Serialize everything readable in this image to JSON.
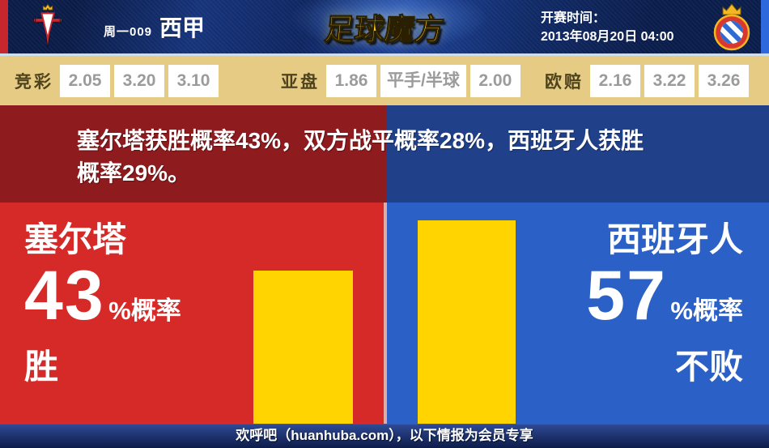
{
  "header": {
    "match_code": "周一009",
    "league": "西甲",
    "brand": "足球魔方",
    "kickoff_label": "开赛时间：",
    "kickoff_datetime": "2013年08月20日 04:00"
  },
  "odds": {
    "jingcai": {
      "label": "竞彩",
      "values": [
        "2.05",
        "3.20",
        "3.10"
      ]
    },
    "yapan": {
      "label": "亚盘",
      "values": [
        "1.86",
        "平手/半球",
        "2.00"
      ]
    },
    "oupei": {
      "label": "欧赔",
      "values": [
        "2.16",
        "3.22",
        "3.26"
      ]
    }
  },
  "analysis": {
    "line1": "塞尔塔获胜概率43%，双方战平概率28%，西班牙人获胜",
    "line2": "概率29%。"
  },
  "home_panel": {
    "team": "塞尔塔",
    "percent": "43",
    "suffix": "%概率",
    "outcome": "胜"
  },
  "away_panel": {
    "team": "西班牙人",
    "percent": "57",
    "suffix": "%概率",
    "outcome": "不败"
  },
  "footer": {
    "text": "欢呼吧（huanhuba.com），以下情报为会员专享"
  },
  "colors": {
    "home_bright": "#d62a28",
    "home_dark": "#8e1b1e",
    "away_bright": "#2b60c6",
    "away_dark": "#20418a",
    "bar": "#ffd400",
    "odds_bg": "#e5cb84"
  },
  "chart_data": {
    "type": "bar",
    "categories": [
      "塞尔塔 胜",
      "西班牙人 不败"
    ],
    "values": [
      43,
      57
    ],
    "unit": "%",
    "bar_color": "#ffd400",
    "probabilities": {
      "home_win_pct": 43,
      "draw_pct": 28,
      "away_win_pct": 29
    }
  }
}
